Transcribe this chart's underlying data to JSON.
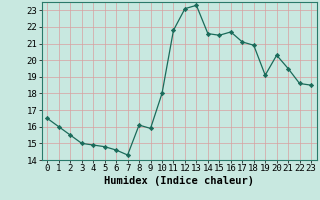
{
  "x": [
    0,
    1,
    2,
    3,
    4,
    5,
    6,
    7,
    8,
    9,
    10,
    11,
    12,
    13,
    14,
    15,
    16,
    17,
    18,
    19,
    20,
    21,
    22,
    23
  ],
  "y": [
    16.5,
    16.0,
    15.5,
    15.0,
    14.9,
    14.8,
    14.6,
    14.3,
    16.1,
    15.9,
    18.0,
    21.8,
    23.1,
    23.3,
    21.6,
    21.5,
    21.7,
    21.1,
    20.9,
    19.1,
    20.3,
    19.5,
    18.6,
    18.5
  ],
  "xlabel": "Humidex (Indice chaleur)",
  "ylim": [
    14,
    23.5
  ],
  "xlim": [
    -0.5,
    23.5
  ],
  "yticks": [
    14,
    15,
    16,
    17,
    18,
    19,
    20,
    21,
    22,
    23
  ],
  "xticks": [
    0,
    1,
    2,
    3,
    4,
    5,
    6,
    7,
    8,
    9,
    10,
    11,
    12,
    13,
    14,
    15,
    16,
    17,
    18,
    19,
    20,
    21,
    22,
    23
  ],
  "line_color": "#1a6b5a",
  "marker_color": "#1a6b5a",
  "bg_color": "#c8e8e0",
  "grid_color": "#b0d8d0",
  "label_fontsize": 7.5,
  "tick_fontsize": 6.5
}
